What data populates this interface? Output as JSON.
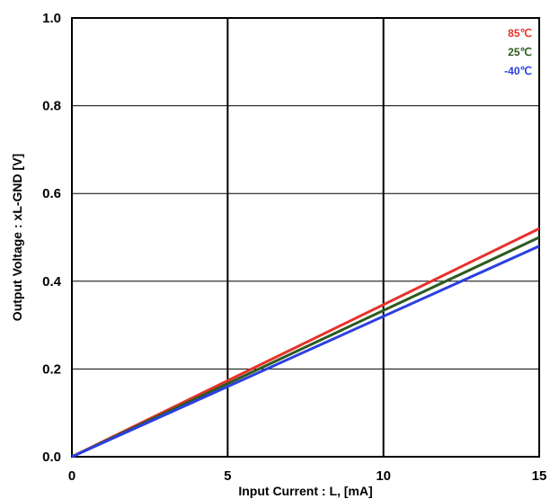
{
  "chart_data": {
    "type": "line",
    "title": "",
    "xlabel": "Input Current : L, [mA]",
    "ylabel": "Output Voltage : xL-GND [V]",
    "xlim": [
      0,
      15
    ],
    "ylim": [
      0.0,
      1.0
    ],
    "x_ticks": [
      "0",
      "5",
      "10",
      "15"
    ],
    "y_ticks": [
      "0.0",
      "0.2",
      "0.4",
      "0.6",
      "0.8",
      "1.0"
    ],
    "grid": true,
    "legend_position": "top-right",
    "series": [
      {
        "name": "85℃",
        "color": "#e8312b",
        "x": [
          0,
          15
        ],
        "y": [
          0.0,
          0.52
        ]
      },
      {
        "name": "25℃",
        "color": "#2d5a1e",
        "x": [
          0,
          15
        ],
        "y": [
          0.0,
          0.5
        ]
      },
      {
        "name": "-40℃",
        "color": "#2b3fe0",
        "x": [
          0,
          15
        ],
        "y": [
          0.0,
          0.48
        ]
      }
    ]
  }
}
